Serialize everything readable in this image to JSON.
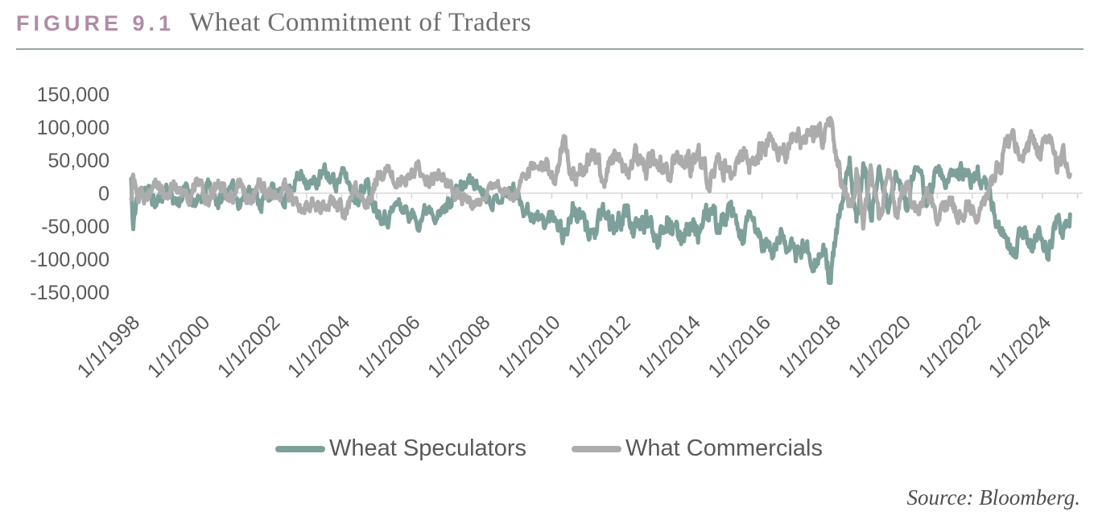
{
  "figure": {
    "label": "FIGURE 9.1",
    "title": "Wheat Commitment of Traders",
    "source": "Source: Bloomberg.",
    "accent_color": "#AF8CA6",
    "rule_color": "#8FA6A0"
  },
  "chart_data": {
    "type": "line",
    "title": "Wheat Commitment of Traders",
    "xlabel": "",
    "ylabel": "",
    "ylim": [
      -150000,
      150000
    ],
    "x_range_years": [
      1998.0,
      2024.8
    ],
    "grid": "zero-line-only",
    "legend_position": "bottom-center",
    "axis_color": "#D9D9D9",
    "label_color": "#595959",
    "y_ticks": [
      150000,
      100000,
      50000,
      0,
      -50000,
      -100000,
      -150000
    ],
    "y_tick_labels": [
      "150,000",
      "100,000",
      "50,000",
      "0",
      "-50,000",
      "-100,000",
      "-150,000"
    ],
    "x_tick_labels": [
      "1/1/1998",
      "1/1/2000",
      "1/1/2002",
      "1/1/2004",
      "1/1/2006",
      "1/1/2008",
      "1/1/2010",
      "1/1/2012",
      "1/1/2014",
      "1/1/2016",
      "1/1/2018",
      "1/1/2020",
      "1/1/2022",
      "1/1/2024"
    ],
    "x_tick_years": [
      1998,
      2000,
      2002,
      2004,
      2006,
      2008,
      2010,
      2012,
      2014,
      2016,
      2018,
      2020,
      2022,
      2024
    ],
    "sampling": "weekly (noisy COT positioning data); control_points are [decimal_year, net_position_contracts] read from chart",
    "series": [
      {
        "name": "Wheat Speculators",
        "color": "#7EA09A",
        "control_points": [
          [
            1998.0,
            22000
          ],
          [
            1998.05,
            -62000
          ],
          [
            1998.15,
            -8000
          ],
          [
            1998.4,
            12000
          ],
          [
            1998.7,
            -18000
          ],
          [
            1999.0,
            10000
          ],
          [
            1999.3,
            -15000
          ],
          [
            1999.6,
            8000
          ],
          [
            1999.9,
            -18000
          ],
          [
            2000.2,
            12000
          ],
          [
            2000.5,
            -15000
          ],
          [
            2000.8,
            8000
          ],
          [
            2001.1,
            -12000
          ],
          [
            2001.4,
            10000
          ],
          [
            2001.7,
            -15000
          ],
          [
            2002.0,
            5000
          ],
          [
            2002.3,
            -12000
          ],
          [
            2002.6,
            15000
          ],
          [
            2002.9,
            28000
          ],
          [
            2003.2,
            12000
          ],
          [
            2003.5,
            30000
          ],
          [
            2003.8,
            18000
          ],
          [
            2004.1,
            28000
          ],
          [
            2004.4,
            -8000
          ],
          [
            2004.7,
            15000
          ],
          [
            2005.0,
            -22000
          ],
          [
            2005.3,
            -38000
          ],
          [
            2005.6,
            -15000
          ],
          [
            2005.9,
            -30000
          ],
          [
            2006.2,
            -42000
          ],
          [
            2006.5,
            -18000
          ],
          [
            2006.8,
            -35000
          ],
          [
            2007.1,
            -10000
          ],
          [
            2007.4,
            8000
          ],
          [
            2007.7,
            20000
          ],
          [
            2008.0,
            5000
          ],
          [
            2008.3,
            -12000
          ],
          [
            2008.6,
            -5000
          ],
          [
            2008.9,
            8000
          ],
          [
            2009.2,
            -20000
          ],
          [
            2009.5,
            -35000
          ],
          [
            2009.8,
            -45000
          ],
          [
            2010.1,
            -30000
          ],
          [
            2010.35,
            -65000
          ],
          [
            2010.6,
            -25000
          ],
          [
            2010.9,
            -45000
          ],
          [
            2011.2,
            -62000
          ],
          [
            2011.5,
            -30000
          ],
          [
            2011.8,
            -55000
          ],
          [
            2012.1,
            -25000
          ],
          [
            2012.4,
            -60000
          ],
          [
            2012.7,
            -40000
          ],
          [
            2013.0,
            -65000
          ],
          [
            2013.3,
            -35000
          ],
          [
            2013.6,
            -70000
          ],
          [
            2013.9,
            -45000
          ],
          [
            2014.2,
            -62000
          ],
          [
            2014.5,
            -28000
          ],
          [
            2014.8,
            -50000
          ],
          [
            2015.1,
            -30000
          ],
          [
            2015.4,
            -68000
          ],
          [
            2015.7,
            -40000
          ],
          [
            2016.0,
            -75000
          ],
          [
            2016.3,
            -90000
          ],
          [
            2016.6,
            -60000
          ],
          [
            2016.9,
            -95000
          ],
          [
            2017.2,
            -80000
          ],
          [
            2017.5,
            -100000
          ],
          [
            2017.75,
            -90000
          ],
          [
            2017.95,
            -132000
          ],
          [
            2018.1,
            -70000
          ],
          [
            2018.3,
            -15000
          ],
          [
            2018.5,
            40000
          ],
          [
            2018.7,
            -35000
          ],
          [
            2018.9,
            55000
          ],
          [
            2019.1,
            -45000
          ],
          [
            2019.35,
            45000
          ],
          [
            2019.6,
            -30000
          ],
          [
            2019.85,
            32000
          ],
          [
            2020.1,
            -18000
          ],
          [
            2020.4,
            35000
          ],
          [
            2020.7,
            -10000
          ],
          [
            2021.0,
            38000
          ],
          [
            2021.3,
            15000
          ],
          [
            2021.6,
            35000
          ],
          [
            2021.9,
            20000
          ],
          [
            2022.2,
            32000
          ],
          [
            2022.45,
            5000
          ],
          [
            2022.7,
            -45000
          ],
          [
            2022.95,
            -70000
          ],
          [
            2023.2,
            -90000
          ],
          [
            2023.45,
            -50000
          ],
          [
            2023.7,
            -88000
          ],
          [
            2023.95,
            -55000
          ],
          [
            2024.15,
            -95000
          ],
          [
            2024.4,
            -45000
          ],
          [
            2024.6,
            -60000
          ],
          [
            2024.8,
            -28000
          ]
        ]
      },
      {
        "name": "What Commercials",
        "color": "#ACACAC",
        "control_points": [
          [
            1998.0,
            -10000
          ],
          [
            1998.05,
            26000
          ],
          [
            1998.15,
            7000
          ],
          [
            1998.4,
            -11000
          ],
          [
            1998.7,
            17000
          ],
          [
            1999.0,
            -9000
          ],
          [
            1999.3,
            14000
          ],
          [
            1999.6,
            -7000
          ],
          [
            1999.9,
            17000
          ],
          [
            2000.2,
            -11000
          ],
          [
            2000.5,
            14000
          ],
          [
            2000.8,
            -7000
          ],
          [
            2001.1,
            11000
          ],
          [
            2001.4,
            -9000
          ],
          [
            2001.7,
            14000
          ],
          [
            2002.0,
            -5000
          ],
          [
            2002.3,
            11000
          ],
          [
            2002.6,
            -14000
          ],
          [
            2002.9,
            -26000
          ],
          [
            2003.2,
            -11000
          ],
          [
            2003.5,
            -28000
          ],
          [
            2003.8,
            -17000
          ],
          [
            2004.1,
            -26000
          ],
          [
            2004.4,
            7000
          ],
          [
            2004.7,
            -14000
          ],
          [
            2005.0,
            20000
          ],
          [
            2005.3,
            35000
          ],
          [
            2005.6,
            14000
          ],
          [
            2005.9,
            28000
          ],
          [
            2006.2,
            39000
          ],
          [
            2006.5,
            17000
          ],
          [
            2006.8,
            33000
          ],
          [
            2007.1,
            9000
          ],
          [
            2007.4,
            -7000
          ],
          [
            2007.7,
            -19000
          ],
          [
            2008.0,
            -5000
          ],
          [
            2008.3,
            11000
          ],
          [
            2008.6,
            5000
          ],
          [
            2008.9,
            -7000
          ],
          [
            2009.2,
            19000
          ],
          [
            2009.5,
            33000
          ],
          [
            2009.8,
            42000
          ],
          [
            2010.1,
            28000
          ],
          [
            2010.35,
            78000
          ],
          [
            2010.6,
            23000
          ],
          [
            2010.9,
            42000
          ],
          [
            2011.2,
            58000
          ],
          [
            2011.5,
            28000
          ],
          [
            2011.8,
            51000
          ],
          [
            2012.1,
            23000
          ],
          [
            2012.4,
            56000
          ],
          [
            2012.7,
            37000
          ],
          [
            2013.0,
            60000
          ],
          [
            2013.3,
            33000
          ],
          [
            2013.6,
            65000
          ],
          [
            2013.9,
            42000
          ],
          [
            2014.2,
            58000
          ],
          [
            2014.5,
            26000
          ],
          [
            2014.8,
            47000
          ],
          [
            2015.1,
            28000
          ],
          [
            2015.4,
            63000
          ],
          [
            2015.7,
            37000
          ],
          [
            2016.0,
            70000
          ],
          [
            2016.3,
            84000
          ],
          [
            2016.6,
            56000
          ],
          [
            2016.9,
            88000
          ],
          [
            2017.2,
            74000
          ],
          [
            2017.5,
            93000
          ],
          [
            2017.75,
            84000
          ],
          [
            2017.95,
            123000
          ],
          [
            2018.1,
            65000
          ],
          [
            2018.3,
            14000
          ],
          [
            2018.5,
            -37000
          ],
          [
            2018.7,
            33000
          ],
          [
            2018.9,
            -51000
          ],
          [
            2019.1,
            42000
          ],
          [
            2019.35,
            -42000
          ],
          [
            2019.6,
            28000
          ],
          [
            2019.85,
            -30000
          ],
          [
            2020.1,
            17000
          ],
          [
            2020.4,
            -33000
          ],
          [
            2020.7,
            9000
          ],
          [
            2021.0,
            -35000
          ],
          [
            2021.3,
            -14000
          ],
          [
            2021.6,
            -33000
          ],
          [
            2021.9,
            -19000
          ],
          [
            2022.2,
            -30000
          ],
          [
            2022.45,
            -5000
          ],
          [
            2022.7,
            42000
          ],
          [
            2022.95,
            65000
          ],
          [
            2023.2,
            84000
          ],
          [
            2023.45,
            47000
          ],
          [
            2023.7,
            82000
          ],
          [
            2023.95,
            51000
          ],
          [
            2024.15,
            98000
          ],
          [
            2024.4,
            42000
          ],
          [
            2024.6,
            56000
          ],
          [
            2024.8,
            35000
          ]
        ]
      }
    ],
    "noise_amplitude_points": [
      [
        1998,
        12000
      ],
      [
        2003,
        13000
      ],
      [
        2007.5,
        11000
      ],
      [
        2008.5,
        8000
      ],
      [
        2009.5,
        14000
      ],
      [
        2013,
        17000
      ],
      [
        2018,
        16000
      ],
      [
        2019.5,
        14000
      ],
      [
        2021.5,
        12000
      ],
      [
        2022.5,
        15000
      ],
      [
        2024.8,
        13000
      ]
    ]
  },
  "legend": {
    "items": [
      {
        "label": "Wheat Speculators",
        "color": "#7EA09A"
      },
      {
        "label": "What Commercials",
        "color": "#ACACAC"
      }
    ]
  }
}
